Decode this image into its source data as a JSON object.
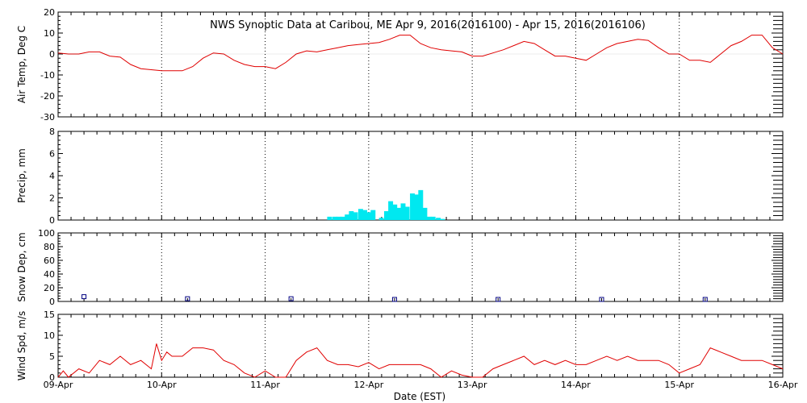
{
  "title": "NWS Synoptic Data at Caribou, ME   Apr  9, 2016(2016100) - Apr 15, 2016(2016106)",
  "xlabel": "Date (EST)",
  "x_tick_labels": [
    "09-Apr",
    "10-Apr",
    "11-Apr",
    "12-Apr",
    "13-Apr",
    "14-Apr",
    "15-Apr",
    "16-Apr"
  ],
  "colors": {
    "temp": "#e00000",
    "precip": "#00e8f0",
    "snow": "#000080",
    "wind": "#e00000",
    "axis": "#000000"
  },
  "chart_data": [
    {
      "type": "line",
      "id": "temp",
      "ylabel": "Air Temp, Deg C",
      "ylim": [
        -30,
        20
      ],
      "yticks": [
        -30,
        -20,
        -10,
        0,
        10,
        20
      ],
      "xlim": [
        0,
        7
      ],
      "x": [
        0,
        0.1,
        0.2,
        0.3,
        0.4,
        0.5,
        0.6,
        0.7,
        0.8,
        1.0,
        1.2,
        1.3,
        1.4,
        1.5,
        1.6,
        1.7,
        1.8,
        1.9,
        2.0,
        2.1,
        2.2,
        2.3,
        2.4,
        2.5,
        2.6,
        2.7,
        2.8,
        2.9,
        3.0,
        3.1,
        3.2,
        3.3,
        3.4,
        3.5,
        3.6,
        3.7,
        3.8,
        3.9,
        4.0,
        4.1,
        4.2,
        4.3,
        4.4,
        4.5,
        4.6,
        4.7,
        4.8,
        4.9,
        5.0,
        5.1,
        5.2,
        5.3,
        5.4,
        5.5,
        5.6,
        5.7,
        5.8,
        5.9,
        6.0,
        6.1,
        6.2,
        6.3,
        6.4,
        6.5,
        6.6,
        6.7,
        6.8,
        6.9,
        7.0
      ],
      "y": [
        0.5,
        0,
        0,
        1,
        1,
        -1,
        -1.5,
        -5,
        -7,
        -8,
        -8,
        -6,
        -2,
        0.5,
        0,
        -3,
        -5,
        -6,
        -6,
        -7,
        -4,
        0,
        1.5,
        1,
        2,
        3,
        4,
        4.5,
        5,
        5.5,
        7,
        9,
        9,
        5,
        3,
        2,
        1.5,
        1,
        -1,
        -1,
        0.5,
        2,
        4,
        6,
        5,
        2,
        -1,
        -1,
        -2,
        -3,
        0,
        3,
        5,
        6,
        7,
        6.5,
        3,
        0,
        0,
        -3,
        -3,
        -4,
        0,
        4,
        6,
        9,
        9,
        3,
        0
      ]
    },
    {
      "type": "bar",
      "id": "precip",
      "ylabel": "Precip, mm",
      "ylim": [
        0,
        8
      ],
      "yticks": [
        0,
        2,
        4,
        6,
        8
      ],
      "xlim": [
        0,
        7
      ],
      "bar_width": 0.0417,
      "x": [
        2.62,
        2.67,
        2.71,
        2.75,
        2.79,
        2.83,
        2.87,
        2.92,
        2.96,
        3.0,
        3.04,
        3.08,
        3.12,
        3.17,
        3.21,
        3.25,
        3.29,
        3.33,
        3.37,
        3.42,
        3.46,
        3.5,
        3.54,
        3.58,
        3.62,
        3.67,
        3.71,
        3.75
      ],
      "values": [
        0.3,
        0.3,
        0.3,
        0.3,
        0.5,
        0.8,
        0.7,
        1.0,
        0.9,
        0.7,
        0.9,
        0,
        0.2,
        0.8,
        1.7,
        1.4,
        1.1,
        1.5,
        1.2,
        2.4,
        2.3,
        2.7,
        1.1,
        0.3,
        0.3,
        0.2,
        0.1,
        0.0
      ]
    },
    {
      "type": "scatter",
      "id": "snow",
      "ylabel": "Snow Dep, cm",
      "ylim": [
        0,
        100
      ],
      "yticks": [
        0,
        20,
        40,
        60,
        80,
        100
      ],
      "xlim": [
        0,
        7
      ],
      "x": [
        0.25,
        1.25,
        2.25,
        3.25,
        4.25,
        5.25,
        6.25
      ],
      "y": [
        4,
        1,
        1,
        0,
        0,
        0,
        0
      ]
    },
    {
      "type": "line",
      "id": "wind",
      "ylabel": "Wind Spd, m/s",
      "ylim": [
        0,
        15
      ],
      "yticks": [
        0,
        5,
        10,
        15
      ],
      "xlim": [
        0,
        7
      ],
      "x": [
        0,
        0.05,
        0.1,
        0.2,
        0.3,
        0.4,
        0.5,
        0.6,
        0.7,
        0.8,
        0.9,
        0.95,
        1.0,
        1.05,
        1.1,
        1.2,
        1.3,
        1.4,
        1.5,
        1.6,
        1.7,
        1.8,
        1.9,
        2.0,
        2.1,
        2.2,
        2.3,
        2.4,
        2.5,
        2.6,
        2.7,
        2.8,
        2.9,
        3.0,
        3.1,
        3.2,
        3.3,
        3.4,
        3.5,
        3.6,
        3.7,
        3.8,
        3.9,
        4.0,
        4.1,
        4.2,
        4.3,
        4.4,
        4.5,
        4.6,
        4.7,
        4.8,
        4.9,
        5.0,
        5.1,
        5.2,
        5.3,
        5.4,
        5.5,
        5.6,
        5.7,
        5.8,
        5.9,
        6.0,
        6.1,
        6.2,
        6.3,
        6.4,
        6.5,
        6.6,
        6.7,
        6.8,
        6.9,
        7.0
      ],
      "y": [
        0,
        1.5,
        0,
        2,
        1,
        4,
        3,
        5,
        3,
        4,
        2,
        8,
        4,
        6,
        5,
        5,
        7,
        7,
        6.5,
        4,
        3,
        1,
        0,
        1.5,
        0,
        0,
        4,
        6,
        7,
        4,
        3,
        3,
        2.5,
        3.5,
        2,
        3,
        3,
        3,
        3,
        2,
        0,
        1.5,
        0.5,
        0,
        0,
        2,
        3,
        4,
        5,
        3,
        4,
        3,
        4,
        3,
        3,
        4,
        5,
        4,
        5,
        4,
        4,
        4,
        3,
        1,
        2,
        3,
        7,
        6,
        5,
        4,
        4,
        4,
        3,
        2
      ]
    }
  ]
}
